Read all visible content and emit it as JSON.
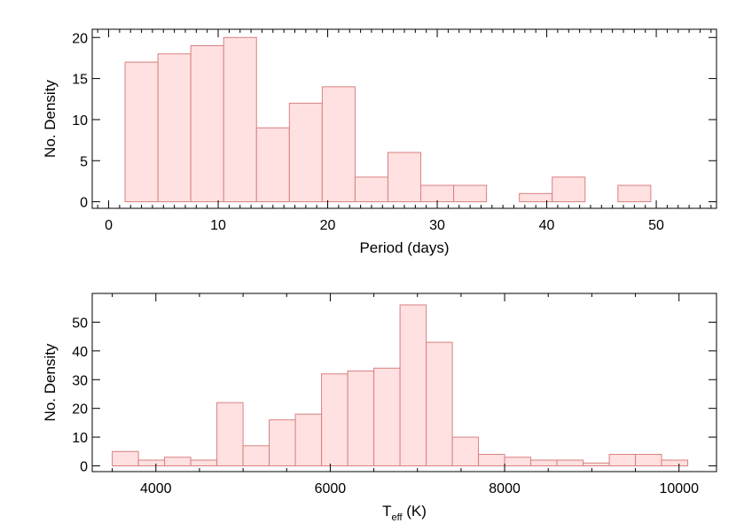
{
  "colors": {
    "bar_fill": "#ffe1e1",
    "bar_stroke": "#d98080",
    "axis": "#000000"
  },
  "chart_data": [
    {
      "type": "bar",
      "xlabel": "Period (days)",
      "ylabel": "No. Density",
      "xlim": [
        -1.5,
        55.5
      ],
      "ylim": [
        -0.8,
        21
      ],
      "x_ticks": [
        0,
        10,
        20,
        30,
        40,
        50
      ],
      "x_tick_labels": [
        "0",
        "10",
        "20",
        "30",
        "40",
        "50"
      ],
      "x_minor_step": 1,
      "y_ticks": [
        0,
        5,
        10,
        15,
        20
      ],
      "y_tick_labels": [
        "0",
        "5",
        "10",
        "15",
        "20"
      ],
      "bin_width": 3,
      "bin_left_edges": [
        1.5,
        4.5,
        7.5,
        10.5,
        13.5,
        16.5,
        19.5,
        22.5,
        25.5,
        28.5,
        31.5,
        34.5,
        37.5,
        40.5,
        43.5,
        46.5
      ],
      "values": [
        17,
        18,
        19,
        20,
        9,
        12,
        14,
        3,
        6,
        2,
        2,
        0,
        1,
        3,
        0,
        2
      ]
    },
    {
      "type": "bar",
      "xlabel": "T",
      "xlabel_sub": "eff",
      "xlabel_unit": " (K)",
      "ylabel": "No. Density",
      "xlim": [
        3270,
        10430
      ],
      "ylim": [
        -2,
        60
      ],
      "x_ticks": [
        4000,
        6000,
        8000,
        10000
      ],
      "x_tick_labels": [
        "4000",
        "6000",
        "8000",
        "10000"
      ],
      "x_minor_step": 500,
      "y_ticks": [
        0,
        10,
        20,
        30,
        40,
        50
      ],
      "y_tick_labels": [
        "0",
        "10",
        "20",
        "30",
        "40",
        "50"
      ],
      "bin_width": 300,
      "bin_left_edges": [
        3500,
        3800,
        4100,
        4400,
        4700,
        5000,
        5300,
        5600,
        5900,
        6200,
        6500,
        6800,
        7100,
        7400,
        7700,
        8000,
        8300,
        8600,
        8900,
        9200,
        9500,
        9800
      ],
      "values": [
        5,
        2,
        3,
        2,
        22,
        7,
        16,
        18,
        32,
        33,
        34,
        56,
        43,
        10,
        4,
        3,
        2,
        2,
        1,
        4,
        4,
        2
      ]
    }
  ]
}
